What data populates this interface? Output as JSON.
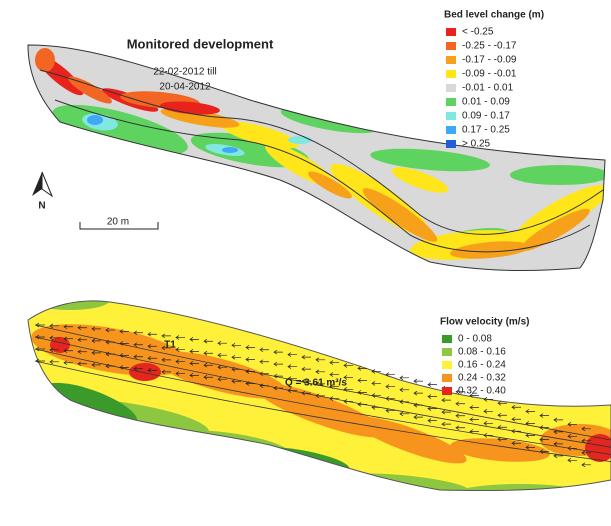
{
  "top_panel": {
    "title": "Monitored development",
    "period": [
      "22-02-2012 till",
      "20-04-2012"
    ],
    "north_label": "N",
    "scale_label": "20 m",
    "legend": {
      "title": "Bed level change (m)",
      "items": [
        {
          "label": "< -0.25",
          "color": "#e8221c"
        },
        {
          "label": "-0.25 - -0.17",
          "color": "#f26522"
        },
        {
          "label": "-0.17 - -0.09",
          "color": "#f7a11a"
        },
        {
          "label": "-0.09 - -0.01",
          "color": "#ffe61a"
        },
        {
          "label": "-0.01 - 0.01",
          "color": "#d9d9d9"
        },
        {
          "label": "0.01 - 0.09",
          "color": "#5fd35f"
        },
        {
          "label": "0.09 - 0.17",
          "color": "#80e8e0"
        },
        {
          "label": "0.17 - 0.25",
          "color": "#3fa9f5"
        },
        {
          "label": "> 0.25",
          "color": "#1f5fd6"
        }
      ]
    }
  },
  "bottom_panel": {
    "label": "T1",
    "discharge": "Q = 3.61 m³/s",
    "legend": {
      "title": "Flow velocity (m/s)",
      "items": [
        {
          "label": "0 - 0.08",
          "color": "#3a9b2b"
        },
        {
          "label": "0.08 - 0.16",
          "color": "#8dc63f"
        },
        {
          "label": "0.16 - 0.24",
          "color": "#fff03a"
        },
        {
          "label": "0.24 - 0.32",
          "color": "#f7941d"
        },
        {
          "label": "0.32 - 0.40",
          "color": "#e5261e"
        }
      ]
    }
  }
}
